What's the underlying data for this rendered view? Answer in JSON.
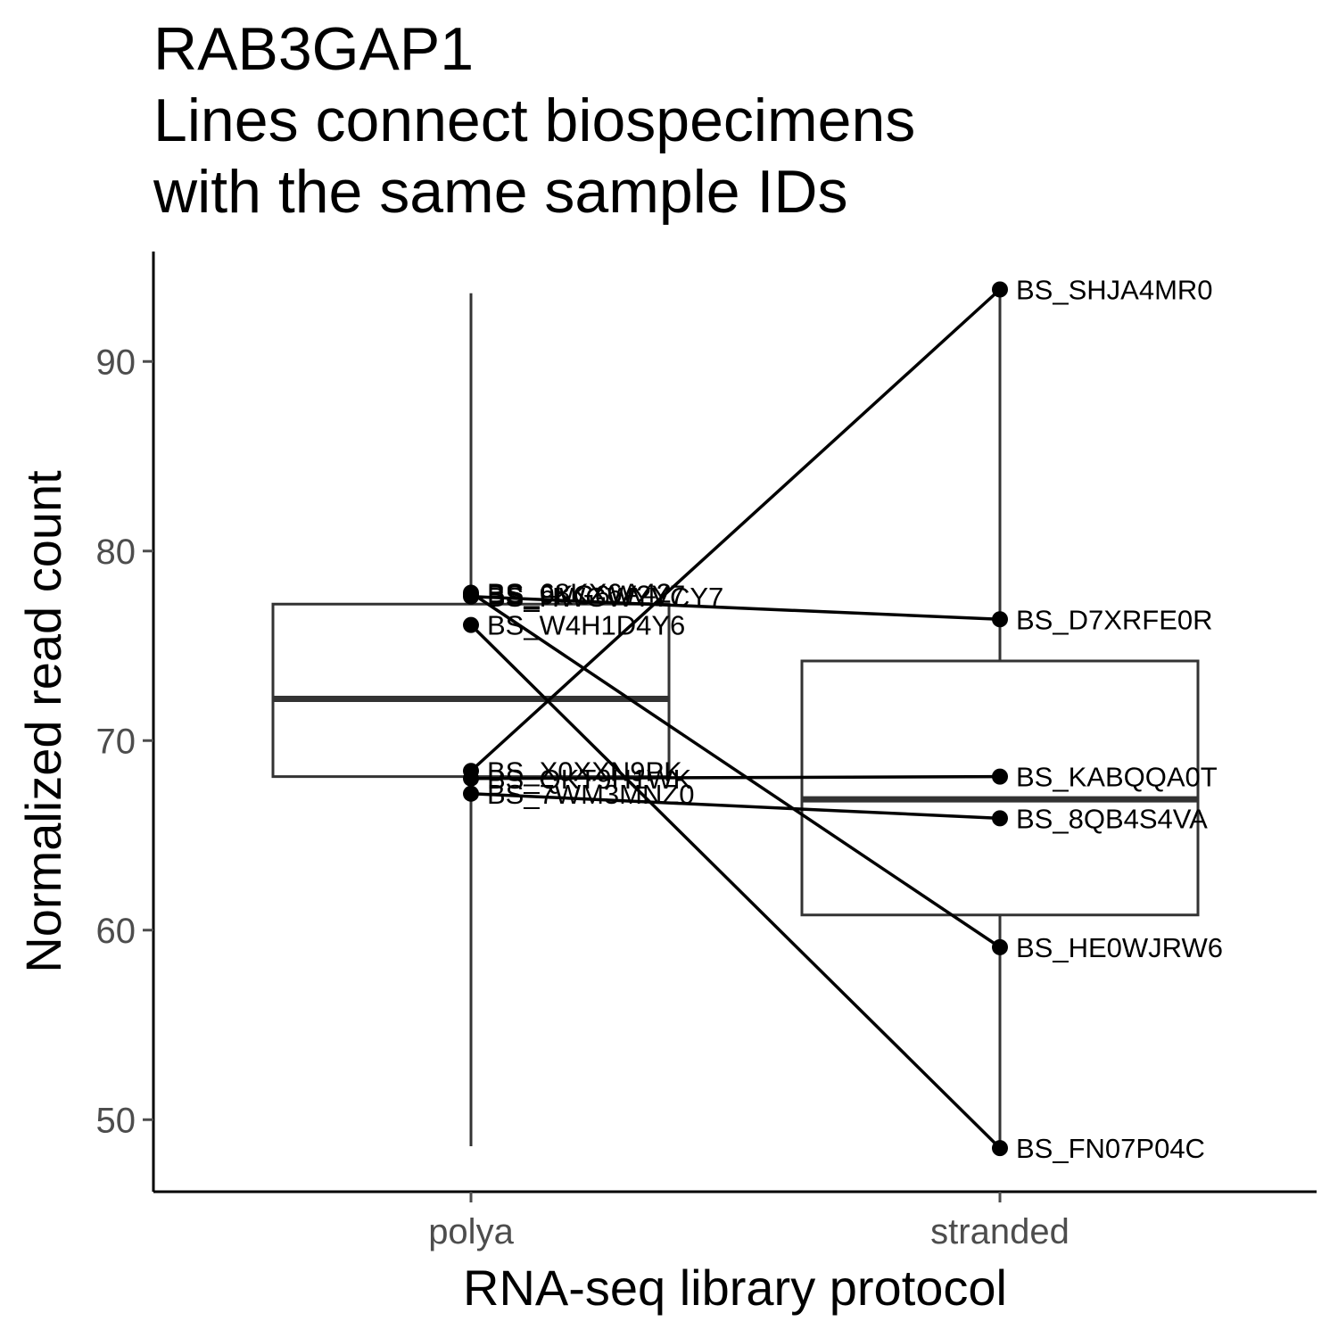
{
  "chart_data": {
    "type": "box-with-paired-points",
    "title_lines": [
      "RAB3GAP1",
      "Lines connect biospecimens",
      "with the same sample IDs"
    ],
    "xlabel": "RNA-seq library protocol",
    "ylabel": "Normalized read count",
    "categories": [
      "polya",
      "stranded"
    ],
    "yticks": [
      50,
      60,
      70,
      80,
      90
    ],
    "ylim": [
      46.2,
      95.8
    ],
    "grid": false,
    "legend": "none",
    "colors": {
      "line": "#000000",
      "box": "#333333",
      "tick": "#4d4d4d"
    },
    "boxes": [
      {
        "category": "polya",
        "lower": 48.6,
        "q1": 68.1,
        "median": 72.2,
        "q3": 77.2,
        "upper": 93.6
      },
      {
        "category": "stranded",
        "lower": 48.6,
        "q1": 60.8,
        "median": 66.9,
        "q3": 74.2,
        "upper": 93.6
      }
    ],
    "points": [
      {
        "category": "polya",
        "id": "BS_68KX6A42",
        "y": 77.8
      },
      {
        "category": "polya",
        "id": "BS_9KG6W2Y7",
        "y": 77.7
      },
      {
        "category": "polya",
        "id": "BS_HWGWYVCY7",
        "y": 77.6
      },
      {
        "category": "polya",
        "id": "BS_W4H1D4Y6",
        "y": 76.1
      },
      {
        "category": "polya",
        "id": "BS_X0XXN9PK",
        "y": 68.4
      },
      {
        "category": "polya",
        "id": "BS_QKT9H1WK",
        "y": 68.0
      },
      {
        "category": "polya",
        "id": "BS_7WM3MNZ0",
        "y": 67.2
      },
      {
        "category": "stranded",
        "id": "BS_SHJA4MR0",
        "y": 93.8
      },
      {
        "category": "stranded",
        "id": "BS_D7XRFE0R",
        "y": 76.4
      },
      {
        "category": "stranded",
        "id": "BS_KABQQA0T",
        "y": 68.1
      },
      {
        "category": "stranded",
        "id": "BS_8QB4S4VA",
        "y": 65.9
      },
      {
        "category": "stranded",
        "id": "BS_HE0WJRW6",
        "y": 59.1
      },
      {
        "category": "stranded",
        "id": "BS_FN07P04C",
        "y": 48.5
      }
    ],
    "pairs": [
      [
        77.8,
        59.1
      ],
      [
        77.6,
        76.4
      ],
      [
        76.1,
        48.5
      ],
      [
        68.4,
        93.8
      ],
      [
        68.0,
        68.1
      ],
      [
        67.2,
        65.9
      ]
    ]
  }
}
